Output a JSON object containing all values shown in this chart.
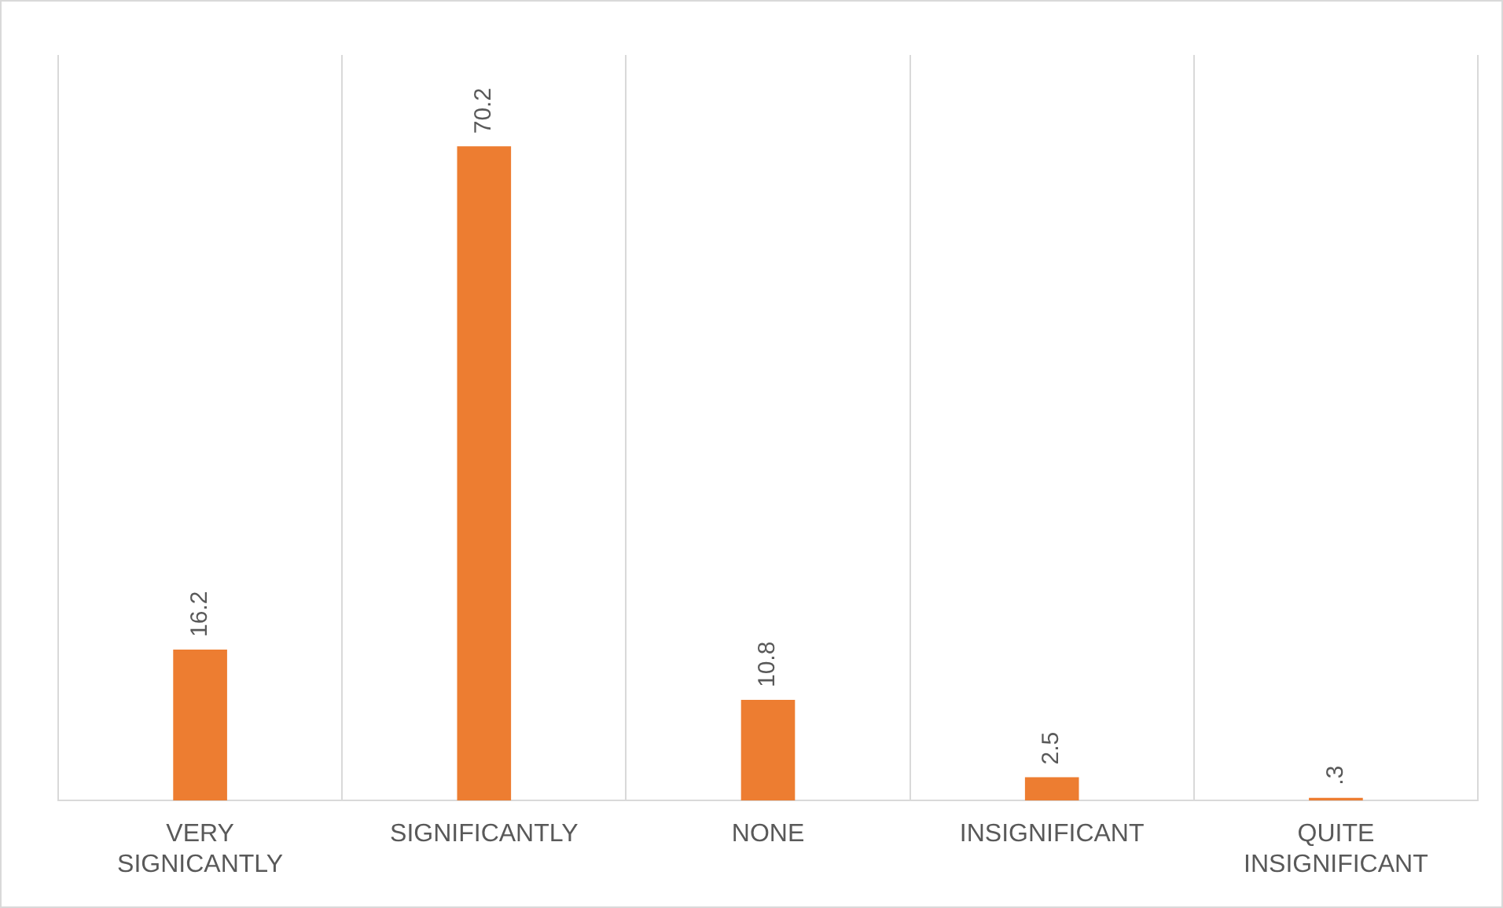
{
  "chart_data": {
    "type": "bar",
    "categories": [
      "VERY SIGNICANTLY",
      "SIGNIFICANTLY",
      "NONE",
      "INSIGNIFICANT",
      "QUITE INSIGNIFICANT"
    ],
    "values": [
      16.2,
      70.2,
      10.8,
      2.5,
      0.3
    ],
    "value_labels": [
      "16.2",
      "70.2",
      "10.8",
      "2.5",
      ".3"
    ],
    "color": "#ed7d31",
    "grid": "x",
    "legend": false
  }
}
